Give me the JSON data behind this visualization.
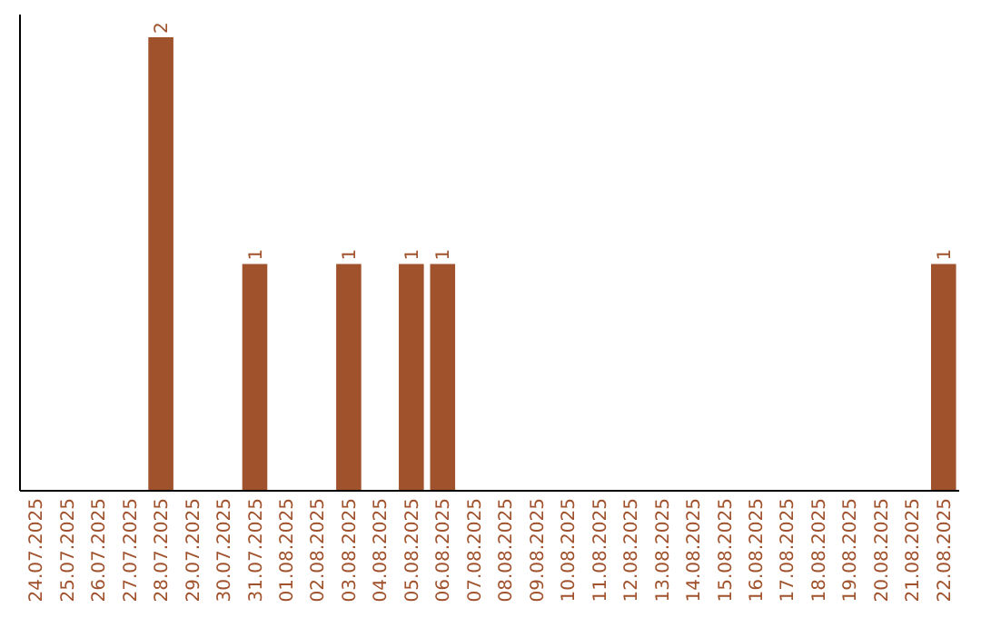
{
  "chart_data": {
    "type": "bar",
    "categories": [
      "24.07.2025",
      "25.07.2025",
      "26.07.2025",
      "27.07.2025",
      "28.07.2025",
      "29.07.2025",
      "30.07.2025",
      "31.07.2025",
      "01.08.2025",
      "02.08.2025",
      "03.08.2025",
      "04.08.2025",
      "05.08.2025",
      "06.08.2025",
      "07.08.2025",
      "08.08.2025",
      "09.08.2025",
      "10.08.2025",
      "11.08.2025",
      "12.08.2025",
      "13.08.2025",
      "14.08.2025",
      "15.08.2025",
      "16.08.2025",
      "17.08.2025",
      "18.08.2025",
      "19.08.2025",
      "20.08.2025",
      "21.08.2025",
      "22.08.2025"
    ],
    "values": [
      0,
      0,
      0,
      0,
      2,
      0,
      0,
      1,
      0,
      0,
      1,
      0,
      1,
      1,
      0,
      0,
      0,
      0,
      0,
      0,
      0,
      0,
      0,
      0,
      0,
      0,
      0,
      0,
      0,
      1
    ],
    "value_labels": [
      null,
      null,
      null,
      null,
      "2",
      null,
      null,
      "1",
      null,
      null,
      "1",
      null,
      "1",
      "1",
      null,
      null,
      null,
      null,
      null,
      null,
      null,
      null,
      null,
      null,
      null,
      null,
      null,
      null,
      null,
      "1"
    ],
    "color": "#a0522d",
    "ylim": [
      0,
      2.1
    ],
    "tick_labels": "x"
  }
}
